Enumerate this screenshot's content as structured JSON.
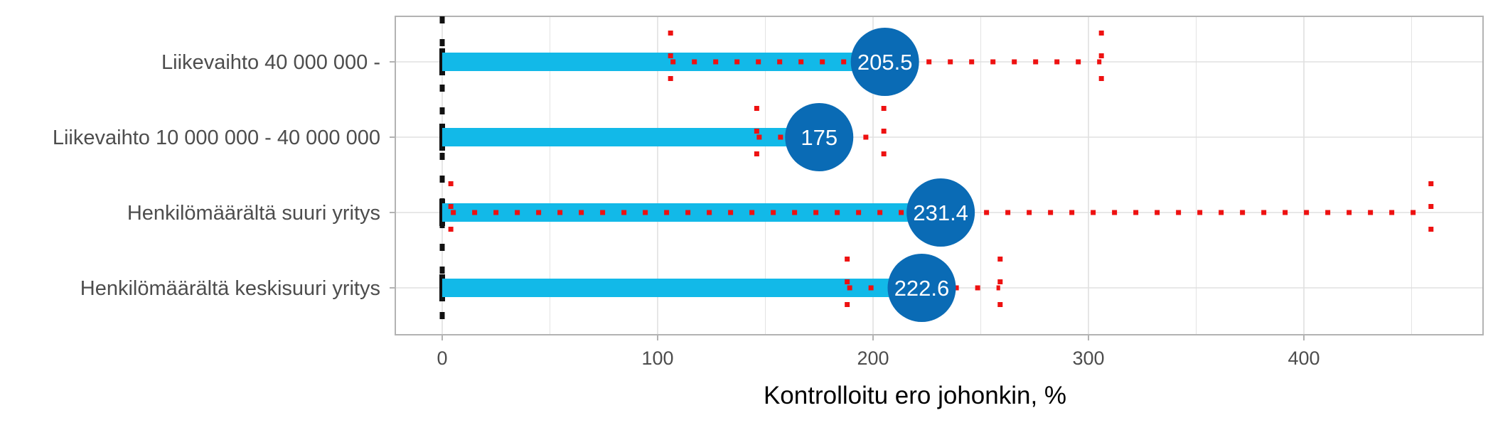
{
  "chart_data": {
    "type": "bar",
    "title": "",
    "xlabel": "Kontrolloitu ero johonkin, %",
    "ylabel": "",
    "xlim": [
      -22,
      470
    ],
    "xticks": [
      0,
      100,
      200,
      300,
      400
    ],
    "grid": true,
    "reference_line": 0,
    "categories": [
      "Liikevaihto 40 000 000 -",
      "Liikevaihto 10 000 000 - 40 000 000",
      "Henkilömäärältä suuri yritys",
      "Henkilömäärältä keskisuuri yritys"
    ],
    "series": [
      {
        "values": [
          205.5,
          175,
          231.4,
          222.6
        ],
        "labels": [
          "205.5",
          "175",
          "231.4",
          "222.6"
        ],
        "ci_low": [
          106,
          146,
          4,
          188
        ],
        "ci_high": [
          306,
          205,
          459,
          259
        ]
      }
    ],
    "colors": {
      "bar": "#12b9e8",
      "point": "#0a6bb5",
      "ci": "#ee1111",
      "zero_line": "#111111",
      "grid": "#e0e0e0",
      "label_text": "#ffffff"
    }
  }
}
